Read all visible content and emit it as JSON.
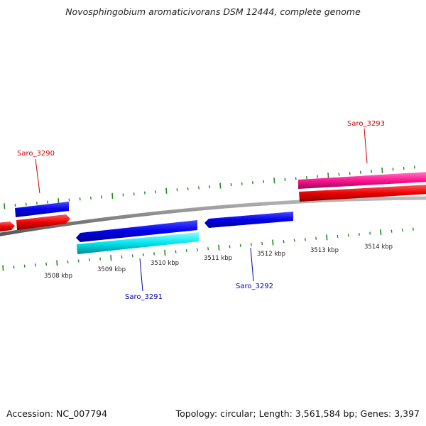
{
  "header": {
    "title": "Novosphingobium aromaticivorans DSM 12444, complete genome"
  },
  "footer": {
    "accession": "Accession: NC_007794",
    "summary": "Topology: circular; Length: 3,561,584 bp; Genes: 3,397"
  },
  "colors": {
    "backbone": "#888888",
    "tick": "#1e8c1e",
    "forward_gene": "#0000ee",
    "forward_cds": "#ee0000",
    "forward_cds_alt": "#ff1493",
    "reverse_gene": "#0000ee",
    "reverse_cds": "#00e5ee",
    "label_forward": "#cc0000",
    "label_reverse": "#0000aa"
  },
  "scale": {
    "unit": "kbp",
    "labels": [
      "3508 kbp",
      "3509 kbp",
      "3510 kbp",
      "3511 kbp",
      "3512 kbp",
      "3513 kbp",
      "3514 kbp"
    ]
  },
  "genes": [
    {
      "name": "Saro_3290",
      "strand": "forward",
      "labeled": true
    },
    {
      "name": "Saro_3291",
      "strand": "reverse",
      "labeled": true
    },
    {
      "name": "Saro_3292",
      "strand": "reverse",
      "labeled": true
    },
    {
      "name": "Saro_3293",
      "strand": "forward",
      "labeled": true
    }
  ]
}
